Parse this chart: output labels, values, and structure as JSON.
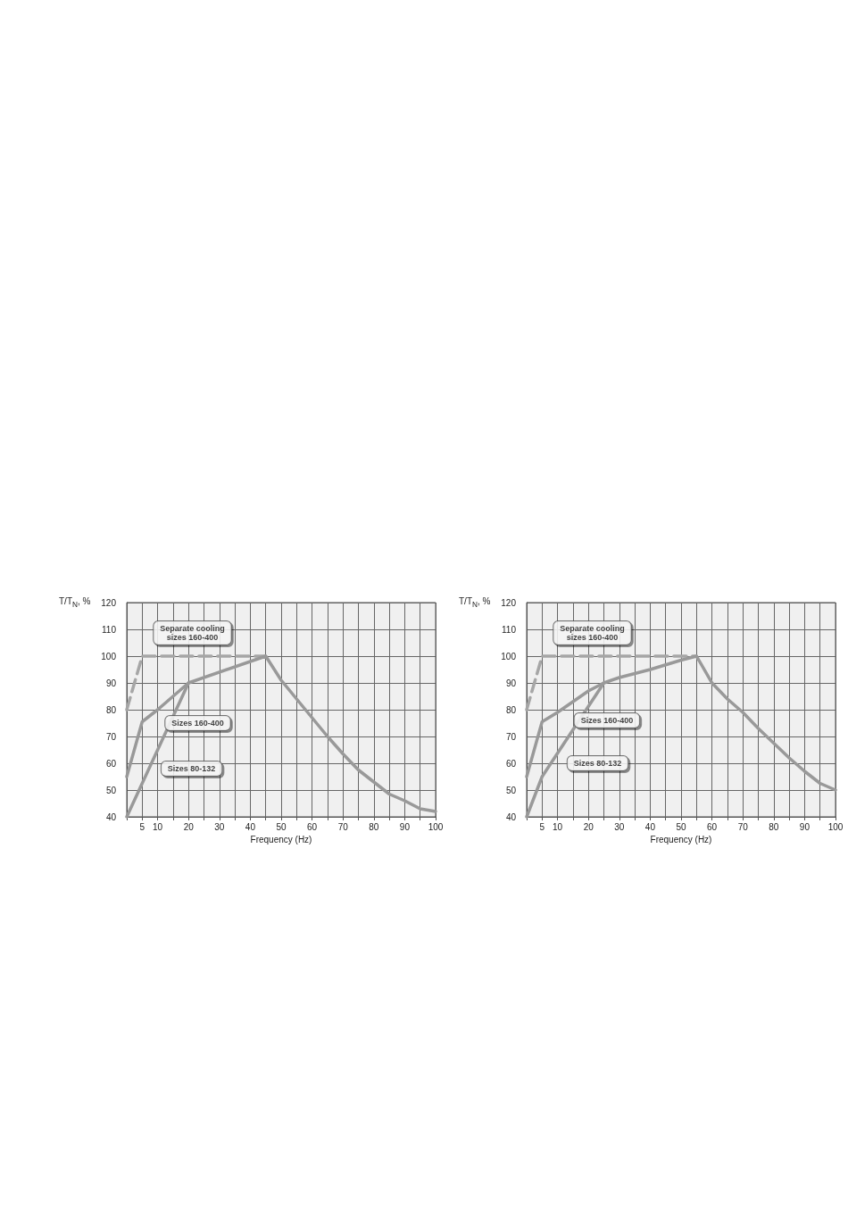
{
  "chart_data": [
    {
      "type": "line",
      "xlabel": "Frequency (Hz)",
      "ylabel": "T/T$_{N}$, %",
      "xlim": [
        0,
        100
      ],
      "ylim": [
        40,
        120
      ],
      "xticks": [
        {
          "value": 0,
          "label": null
        },
        5,
        10,
        {
          "value": 15,
          "label": null
        },
        20,
        {
          "value": 25,
          "label": null
        },
        30,
        {
          "value": 35,
          "label": null
        },
        40,
        {
          "value": 45,
          "label": null
        },
        50,
        {
          "value": 55,
          "label": null
        },
        60,
        {
          "value": 65,
          "label": null
        },
        70,
        {
          "value": 75,
          "label": null
        },
        80,
        {
          "value": 85,
          "label": null
        },
        90,
        {
          "value": 95,
          "label": null
        },
        100
      ],
      "yticks": [
        40,
        50,
        60,
        70,
        80,
        90,
        100,
        110,
        120
      ],
      "grid": true,
      "marker": "none",
      "series": [
        {
          "color": "#a6a6a6",
          "line_style": "dashed",
          "x": [
            0,
            5,
            45
          ],
          "values": [
            80,
            100,
            100
          ]
        },
        {
          "color": "#999999",
          "line_style": "solid",
          "x": [
            0,
            5,
            10,
            20,
            45,
            50,
            55,
            60,
            65,
            70,
            75,
            80,
            85,
            90,
            95,
            100
          ],
          "values": [
            55,
            75.5,
            80,
            90,
            100,
            91,
            84,
            77,
            70,
            63.5,
            57.5,
            53,
            48.5,
            46,
            43,
            42
          ]
        },
        {
          "color": "#999999",
          "line_style": "solid",
          "x": [
            0,
            20
          ],
          "values": [
            40,
            90
          ]
        }
      ],
      "annotations": [
        {
          "text": "Separate cooling\nsizes 160-400",
          "x": 12,
          "y": 100
        },
        {
          "text": "Sizes 160-400",
          "x": 12,
          "y": 82
        },
        {
          "text": "Sizes 80-132",
          "x": 10,
          "y": 65
        }
      ]
    },
    {
      "type": "line",
      "xlabel": "Frequency (Hz)",
      "ylabel": "T/T$_{N}$, %",
      "xlim": [
        0,
        100
      ],
      "ylim": [
        40,
        120
      ],
      "xticks": [
        {
          "value": 0,
          "label": null
        },
        5,
        10,
        {
          "value": 15,
          "label": null
        },
        20,
        {
          "value": 25,
          "label": null
        },
        30,
        {
          "value": 35,
          "label": null
        },
        40,
        {
          "value": 45,
          "label": null
        },
        50,
        {
          "value": 55,
          "label": null
        },
        60,
        {
          "value": 65,
          "label": null
        },
        70,
        {
          "value": 75,
          "label": null
        },
        80,
        {
          "value": 85,
          "label": null
        },
        90,
        {
          "value": 95,
          "label": null
        },
        100
      ],
      "yticks": [
        40,
        50,
        60,
        70,
        80,
        90,
        100,
        110,
        120
      ],
      "grid": true,
      "marker": "none",
      "series": [
        {
          "color": "#a6a6a6",
          "line_style": "dashed",
          "x": [
            0,
            5,
            55
          ],
          "values": [
            80,
            100,
            100
          ]
        },
        {
          "color": "#999999",
          "line_style": "solid",
          "x": [
            0,
            5,
            10,
            15,
            20,
            25,
            30,
            40,
            50,
            55,
            60,
            65,
            70,
            75,
            80,
            85,
            90,
            95,
            100
          ],
          "values": [
            55,
            75.5,
            79,
            83,
            87,
            90,
            92,
            95,
            98.5,
            100,
            90,
            84,
            79,
            73,
            67.5,
            62,
            57,
            52.5,
            50
          ]
        },
        {
          "color": "#999999",
          "line_style": "solid",
          "x": [
            0,
            5,
            25
          ],
          "values": [
            40,
            55,
            90
          ]
        }
      ],
      "annotations": [
        {
          "text": "Separate cooling\nsizes 160-400",
          "x": 12,
          "y": 100
        },
        {
          "text": "Sizes 160-400",
          "x": 15,
          "y": 83
        },
        {
          "text": "Sizes 80-132",
          "x": 12,
          "y": 67
        }
      ]
    }
  ]
}
